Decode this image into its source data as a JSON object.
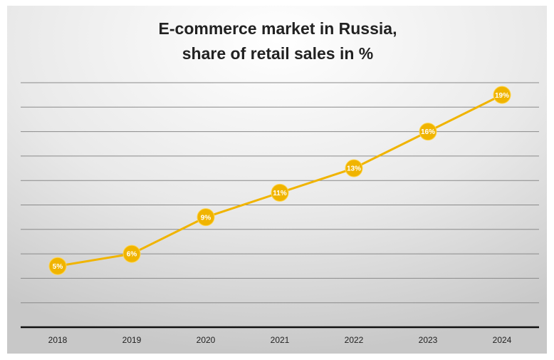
{
  "chart_data": {
    "type": "line",
    "title": [
      "E-commerce market in Russia,",
      "share of retail sales in %"
    ],
    "categories": [
      "2018",
      "2019",
      "2020",
      "2021",
      "2022",
      "2023",
      "2024"
    ],
    "values": [
      5,
      6,
      9,
      11,
      13,
      16,
      19
    ],
    "value_labels": [
      "5%",
      "6%",
      "9%",
      "11%",
      "13%",
      "16%",
      "19%"
    ],
    "color": "#f0b400",
    "ylim": [
      0,
      20
    ],
    "yticks": [
      0,
      2,
      4,
      6,
      8,
      10,
      12,
      14,
      16,
      18,
      20
    ],
    "grid": true
  }
}
